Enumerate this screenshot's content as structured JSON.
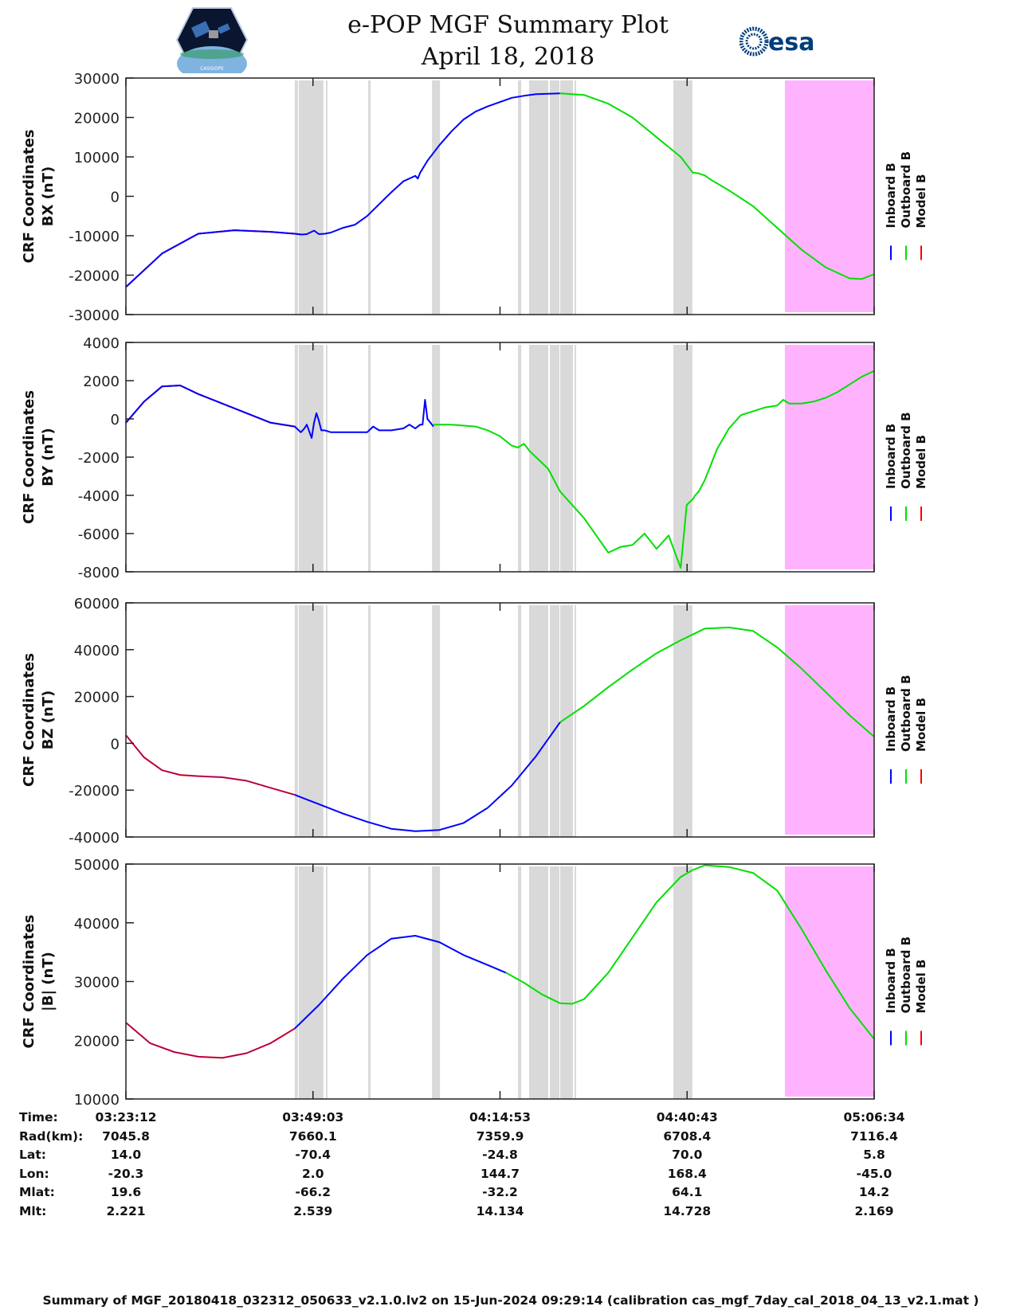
{
  "header": {
    "title_line1": "e-POP MGF Summary Plot",
    "title_line2": "April 18, 2018",
    "logo_left": "cassiope-mission-logo",
    "logo_right_text": "esa"
  },
  "colors": {
    "inboard": "#0000ff",
    "outboard": "#00e000",
    "model": "#ff0000",
    "gap_shading": "#d9d9d9",
    "flag_shading": "#ffb3ff",
    "axis": "#222222"
  },
  "chart_data": [
    {
      "type": "line",
      "id": "bx",
      "ylabel_line1": "CRF Coordinates",
      "ylabel_line2": "BX (nT)",
      "ylim": [
        -30000,
        30000
      ],
      "yticks": [
        -30000,
        -20000,
        -10000,
        0,
        10000,
        20000,
        30000
      ],
      "series": [
        {
          "name": "Model B",
          "color_key": "model",
          "x": [
            0,
            300,
            600,
            900,
            1200,
            1400,
            1450
          ],
          "y": [
            -23000,
            -14500,
            -9500,
            -8600,
            -9000,
            -9500,
            -9700
          ]
        },
        {
          "name": "Inboard B",
          "color_key": "inboard",
          "x": [
            0,
            300,
            600,
            900,
            1200,
            1400,
            1460,
            1500,
            1560,
            1600,
            1650,
            1700,
            1800,
            1900,
            2000,
            2100,
            2200,
            2300,
            2400,
            2420,
            2440,
            2500,
            2600,
            2700,
            2800,
            2900,
            3000,
            3100,
            3200,
            3300,
            3400,
            3500,
            3600
          ],
          "y": [
            -23000,
            -14500,
            -9500,
            -8600,
            -9000,
            -9500,
            -9700,
            -9600,
            -8700,
            -9600,
            -9500,
            -9200,
            -8000,
            -7200,
            -5000,
            -2000,
            1000,
            3800,
            5200,
            4500,
            6000,
            9000,
            13000,
            16500,
            19500,
            21500,
            22800,
            23900,
            25000,
            25500,
            25900,
            26000,
            26100
          ]
        },
        {
          "name": "Outboard B",
          "color_key": "outboard",
          "x": [
            3600,
            3800,
            4000,
            4200,
            4400,
            4600,
            4700,
            4750,
            4800,
            4850,
            5000,
            5200,
            5400,
            5600,
            5800,
            6000,
            6100,
            6200
          ],
          "y": [
            26100,
            25700,
            23500,
            20000,
            15000,
            10000,
            6000,
            5800,
            5300,
            4200,
            1500,
            -2500,
            -8000,
            -13500,
            -18000,
            -20800,
            -21000,
            -19800
          ]
        }
      ]
    },
    {
      "type": "line",
      "id": "by",
      "ylabel_line1": "CRF Coordinates",
      "ylabel_line2": "BY (nT)",
      "ylim": [
        -8000,
        4000
      ],
      "yticks": [
        -8000,
        -6000,
        -4000,
        -2000,
        0,
        2000,
        4000
      ],
      "series": [
        {
          "name": "Model B",
          "color_key": "model",
          "x": [
            0,
            150,
            300,
            450,
            600,
            800,
            1000,
            1200,
            1400
          ],
          "y": [
            -200,
            900,
            1700,
            1750,
            1300,
            800,
            300,
            -200,
            -400
          ]
        },
        {
          "name": "Inboard B",
          "color_key": "inboard",
          "x": [
            0,
            150,
            300,
            450,
            600,
            800,
            1000,
            1200,
            1400,
            1450,
            1480,
            1500,
            1540,
            1560,
            1580,
            1600,
            1620,
            1650,
            1700,
            1800,
            1900,
            2000,
            2050,
            2100,
            2200,
            2300,
            2350,
            2400,
            2420,
            2440,
            2460,
            2480,
            2500,
            2550
          ],
          "y": [
            -200,
            900,
            1700,
            1750,
            1300,
            800,
            300,
            -200,
            -400,
            -700,
            -500,
            -300,
            -1000,
            -200,
            300,
            -100,
            -600,
            -600,
            -700,
            -700,
            -700,
            -700,
            -400,
            -600,
            -600,
            -500,
            -300,
            -500,
            -400,
            -300,
            -300,
            1000,
            0,
            -400
          ]
        },
        {
          "name": "Outboard B",
          "color_key": "outboard",
          "x": [
            2550,
            2700,
            2900,
            3000,
            3100,
            3200,
            3250,
            3300,
            3350,
            3400,
            3500,
            3600,
            3700,
            3800,
            3900,
            4000,
            4100,
            4200,
            4300,
            4400,
            4500,
            4600,
            4650,
            4700,
            4720,
            4750,
            4800,
            4850,
            4900,
            5000,
            5100,
            5200,
            5300,
            5400,
            5450,
            5500,
            5600,
            5700,
            5800,
            5900,
            6000,
            6100,
            6200
          ],
          "y": [
            -300,
            -300,
            -400,
            -600,
            -900,
            -1400,
            -1500,
            -1300,
            -1700,
            -2000,
            -2600,
            -3800,
            -4500,
            -5200,
            -6100,
            -7000,
            -6700,
            -6600,
            -6000,
            -6800,
            -6100,
            -7800,
            -4500,
            -4200,
            -4000,
            -3800,
            -3200,
            -2400,
            -1600,
            -500,
            200,
            400,
            600,
            700,
            1000,
            800,
            800,
            900,
            1100,
            1400,
            1800,
            2200,
            2500
          ]
        }
      ]
    },
    {
      "type": "line",
      "id": "bz",
      "ylabel_line1": "CRF Coordinates",
      "ylabel_line2": "BZ (nT)",
      "ylim": [
        -40000,
        60000
      ],
      "yticks": [
        -40000,
        -20000,
        0,
        20000,
        40000,
        60000
      ],
      "series": [
        {
          "name": "Model B",
          "color_key": "model",
          "x": [
            0,
            150,
            300,
            450,
            600,
            800,
            1000,
            1200,
            1400
          ],
          "y": [
            3500,
            -6000,
            -11500,
            -13500,
            -14000,
            -14500,
            -16000,
            -19000,
            -22000
          ]
        },
        {
          "name": "Inboard B",
          "color_key": "inboard",
          "x": [
            1400,
            1600,
            1800,
            2000,
            2200,
            2400,
            2600,
            2800,
            3000,
            3200,
            3400,
            3600
          ],
          "y": [
            -22000,
            -26000,
            -30000,
            -33500,
            -36500,
            -37500,
            -37000,
            -34000,
            -27500,
            -18000,
            -5500,
            9000
          ]
        },
        {
          "name": "Outboard B",
          "color_key": "outboard",
          "x": [
            3600,
            3800,
            4000,
            4200,
            4400,
            4600,
            4700,
            4800,
            5000,
            5200,
            5400,
            5600,
            5800,
            6000,
            6200
          ],
          "y": [
            9000,
            16000,
            24000,
            31500,
            38500,
            44000,
            46500,
            49000,
            49500,
            48000,
            41000,
            32000,
            22000,
            12000,
            3000
          ]
        }
      ]
    },
    {
      "type": "line",
      "id": "bt",
      "ylabel_line1": "CRF Coordinates",
      "ylabel_line2": "|B| (nT)",
      "ylim": [
        10000,
        50000
      ],
      "yticks": [
        10000,
        20000,
        30000,
        40000,
        50000
      ],
      "series": [
        {
          "name": "Model B",
          "color_key": "model",
          "x": [
            0,
            200,
            400,
            600,
            800,
            1000,
            1200,
            1400
          ],
          "y": [
            23000,
            19500,
            18000,
            17200,
            17000,
            17800,
            19500,
            22000
          ]
        },
        {
          "name": "Inboard B",
          "color_key": "inboard",
          "x": [
            1400,
            1600,
            1800,
            2000,
            2200,
            2400,
            2600,
            2800,
            3000,
            3150
          ],
          "y": [
            22000,
            26000,
            30500,
            34500,
            37300,
            37800,
            36700,
            34500,
            32800,
            31500
          ]
        },
        {
          "name": "Outboard B",
          "color_key": "outboard",
          "x": [
            3150,
            3300,
            3450,
            3600,
            3700,
            3800,
            4000,
            4200,
            4400,
            4600,
            4700,
            4800,
            5000,
            5200,
            5400,
            5600,
            5800,
            6000,
            6200
          ],
          "y": [
            31500,
            29800,
            27800,
            26300,
            26200,
            27000,
            31500,
            37500,
            43500,
            47800,
            49000,
            49800,
            49500,
            48500,
            45500,
            39000,
            32000,
            25500,
            20300
          ]
        }
      ]
    }
  ],
  "time_axis": {
    "unit": "seconds since 03:23:12",
    "range": [
      0,
      6204
    ],
    "tick_seconds": [
      0,
      1551,
      3102,
      4653,
      6204
    ],
    "gap_intervals": [
      [
        1400,
        1426
      ],
      [
        1433,
        1638
      ],
      [
        1658,
        1671
      ],
      [
        2009,
        2029
      ],
      [
        2538,
        2604
      ],
      [
        3251,
        3278
      ],
      [
        3343,
        3502
      ],
      [
        3515,
        3594
      ],
      [
        3601,
        3707
      ],
      [
        3720,
        3733
      ],
      [
        4539,
        4697
      ]
    ],
    "flag_interval": [
      5464,
      6204
    ]
  },
  "legend": {
    "items": [
      {
        "label": "Inboard B",
        "color_key": "inboard"
      },
      {
        "label": "Outboard B",
        "color_key": "outboard"
      },
      {
        "label": "Model B",
        "color_key": "model"
      }
    ],
    "placement": "right"
  },
  "ephemeris": {
    "labels": [
      "Time:",
      "Rad(km):",
      "Lat:",
      "Lon:",
      "Mlat:",
      "Mlt:"
    ],
    "columns": [
      [
        "03:23:12",
        "7045.8",
        "14.0",
        "-20.3",
        "19.6",
        "2.221"
      ],
      [
        "03:49:03",
        "7660.1",
        "-70.4",
        "2.0",
        "-66.2",
        "2.539"
      ],
      [
        "04:14:53",
        "7359.9",
        "-24.8",
        "144.7",
        "-32.2",
        "14.134"
      ],
      [
        "04:40:43",
        "6708.4",
        "70.0",
        "168.4",
        "64.1",
        "14.728"
      ],
      [
        "05:06:34",
        "7116.4",
        "5.8",
        "-45.0",
        "14.2",
        "2.169"
      ]
    ]
  },
  "footer": "Summary of MGF_20180418_032312_050633_v2.1.0.lv2 on 15-Jun-2024 09:29:14 (calibration cas_mgf_7day_cal_2018_04_13_v2.1.mat )"
}
